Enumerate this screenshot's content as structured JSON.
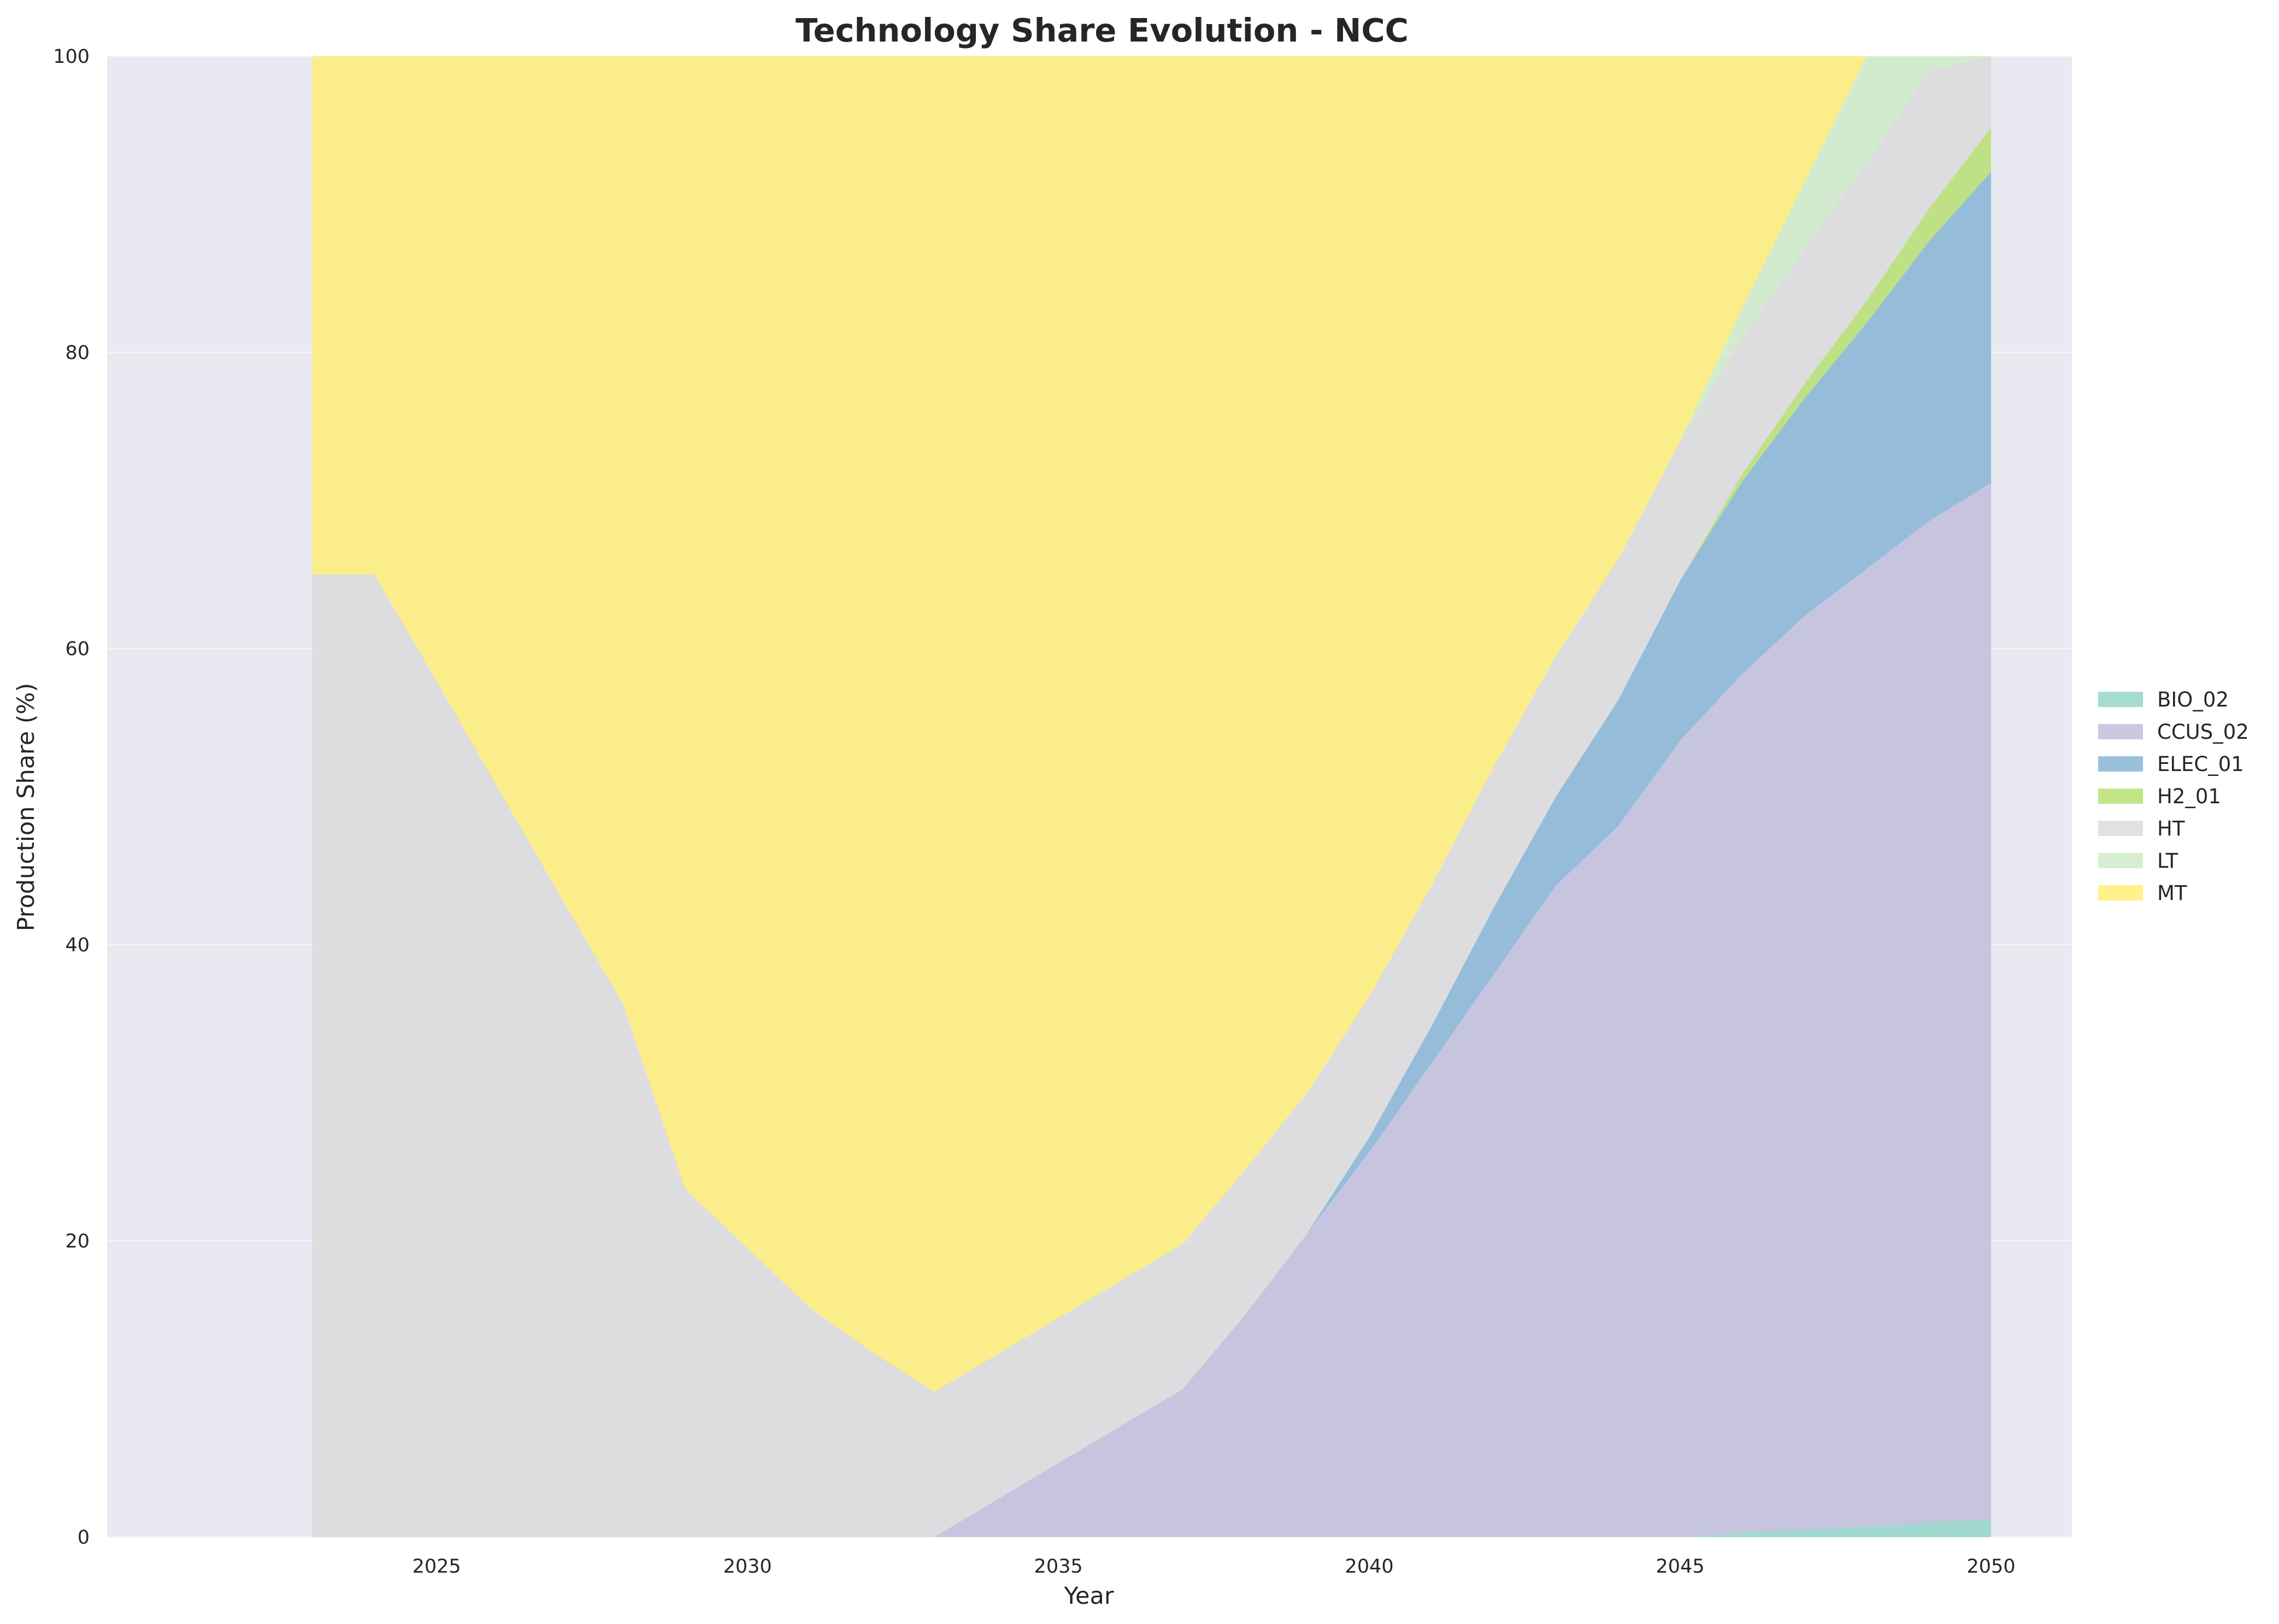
{
  "chart_data": {
    "type": "area",
    "stacked": true,
    "title": "Technology Share Evolution - NCC",
    "xlabel": "Year",
    "ylabel": "Production Share (%)",
    "xlim": [
      2019.7,
      2051.3
    ],
    "ylim": [
      0,
      100
    ],
    "x_ticks": [
      2025,
      2030,
      2035,
      2040,
      2045,
      2050
    ],
    "y_ticks": [
      0,
      20,
      40,
      60,
      80,
      100
    ],
    "grid": true,
    "legend_position": "right",
    "background_color": "#e9e9f2",
    "x": [
      2023,
      2024,
      2025,
      2026,
      2027,
      2028,
      2029,
      2030,
      2031,
      2032,
      2033,
      2034,
      2035,
      2036,
      2037,
      2038,
      2039,
      2040,
      2041,
      2042,
      2043,
      2044,
      2045,
      2046,
      2047,
      2048,
      2049,
      2050
    ],
    "series": [
      {
        "name": "BIO_02",
        "color": "#8dd3c7",
        "values": [
          0,
          0,
          0,
          0,
          0,
          0,
          0,
          0,
          0,
          0,
          0,
          0,
          0,
          0,
          0,
          0,
          0,
          0,
          0,
          0,
          0,
          0,
          0,
          0.3,
          0.5,
          0.7,
          1.0,
          1.2
        ]
      },
      {
        "name": "CCUS_02",
        "color": "#bebada",
        "values": [
          0,
          0,
          0,
          0,
          0,
          0,
          0,
          0,
          0,
          0,
          0,
          2.5,
          5.0,
          7.5,
          10.0,
          15.0,
          20.5,
          26.0,
          32.0,
          38.0,
          44.0,
          48.0,
          53.8,
          58.0,
          61.7,
          64.7,
          67.6,
          70.0
        ]
      },
      {
        "name": "ELEC_01",
        "color": "#80b1d3",
        "values": [
          0,
          0,
          0,
          0,
          0,
          0,
          0,
          0,
          0,
          0,
          0,
          0,
          0,
          0,
          0,
          0,
          0,
          1.0,
          2.5,
          4.5,
          6.0,
          8.5,
          10.8,
          13.0,
          14.7,
          16.6,
          18.9,
          21.0
        ]
      },
      {
        "name": "H2_01",
        "color": "#b3de69",
        "values": [
          0,
          0,
          0,
          0,
          0,
          0,
          0,
          0,
          0,
          0,
          0,
          0,
          0,
          0,
          0,
          0,
          0,
          0,
          0,
          0,
          0,
          0,
          0,
          0.5,
          1.0,
          1.5,
          2.2,
          3.0
        ]
      },
      {
        "name": "HT",
        "color": "#d9d9d9",
        "values": [
          65.0,
          65.0,
          57.8,
          50.5,
          43.2,
          36.0,
          23.5,
          19.5,
          15.5,
          12.5,
          9.8,
          9.8,
          9.8,
          9.8,
          9.8,
          9.8,
          9.5,
          9.5,
          9.5,
          9.5,
          9.5,
          9.5,
          9.4,
          9.2,
          9.1,
          9.3,
          9.3,
          4.8
        ]
      },
      {
        "name": "LT",
        "color": "#ccebc5",
        "values": [
          0,
          0,
          0,
          0,
          0,
          0,
          0,
          0,
          0,
          0,
          0,
          0,
          0,
          0,
          0,
          0,
          0,
          0,
          0,
          0,
          0,
          0,
          0,
          2.0,
          4.5,
          7.2,
          1.0,
          0.0
        ]
      },
      {
        "name": "MT",
        "color": "#ffed6f",
        "values": [
          35.0,
          35.0,
          42.2,
          49.5,
          56.8,
          64.0,
          76.5,
          80.5,
          84.5,
          87.5,
          90.2,
          87.7,
          85.2,
          82.7,
          80.2,
          75.2,
          70.0,
          63.5,
          56.0,
          48.0,
          40.5,
          34.0,
          26.0,
          17.0,
          8.5,
          0.0,
          0.0,
          0.0
        ]
      }
    ]
  }
}
